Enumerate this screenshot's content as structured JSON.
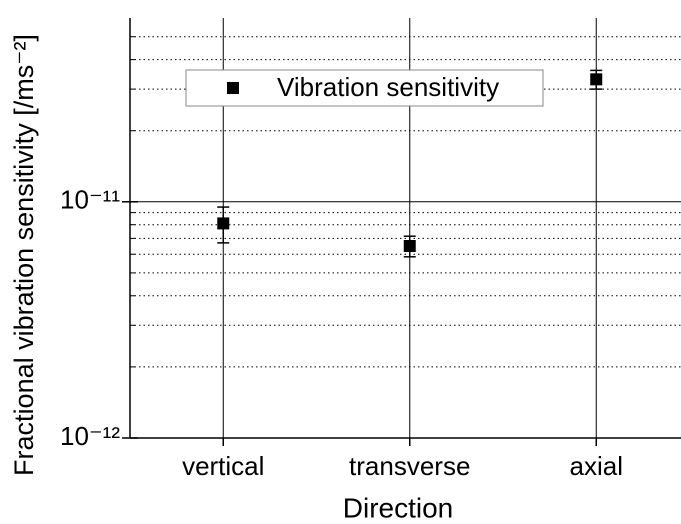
{
  "chart_data": {
    "type": "scatter",
    "xlabel": "Direction",
    "ylabel": "Fractional vibration sensitivity [/ms⁻²]",
    "categories": [
      "vertical",
      "transverse",
      "axial"
    ],
    "series": [
      {
        "name": "Vibration sensitivity",
        "color": "#000000",
        "values": [
          8.1e-12,
          6.5e-12,
          3.3e-11
        ],
        "errors": [
          1.4e-12,
          6.5e-13,
          3e-12
        ]
      }
    ],
    "ylim": [
      1e-12,
      6e-11
    ],
    "log_y": true,
    "yticks": [
      {
        "value": 1e-12,
        "label": "10⁻¹²"
      },
      {
        "value": 1e-11,
        "label": "10⁻¹¹"
      }
    ],
    "minor_yticks": [
      2e-12,
      3e-12,
      4e-12,
      5e-12,
      6e-12,
      7e-12,
      8e-12,
      9e-12,
      2e-11,
      3e-11,
      4e-11,
      5e-11
    ],
    "grid": true,
    "legend": "upper left"
  }
}
